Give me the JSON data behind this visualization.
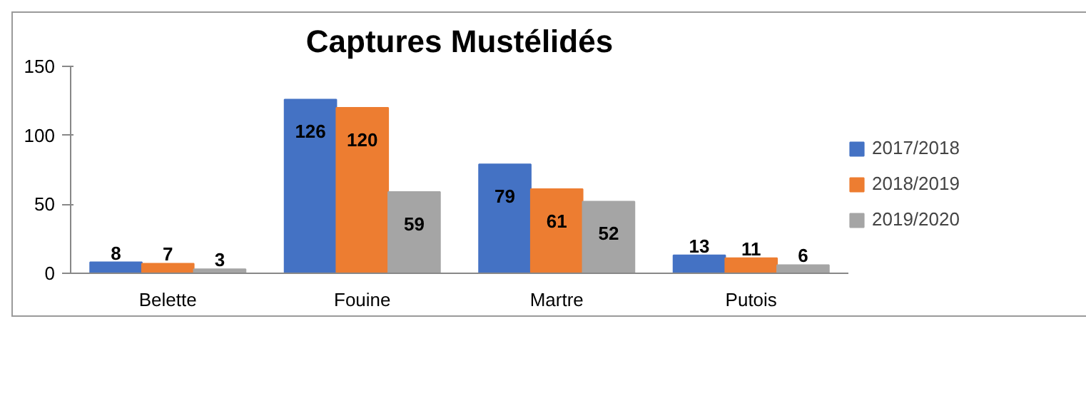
{
  "chart_data": {
    "type": "bar",
    "title": "Captures Mustélidés",
    "categories": [
      "Belette",
      "Fouine",
      "Martre",
      "Putois"
    ],
    "series": [
      {
        "name": "2017/2018",
        "color": "#4472c4",
        "values": [
          8,
          126,
          79,
          13
        ]
      },
      {
        "name": "2018/2019",
        "color": "#ed7d31",
        "values": [
          7,
          120,
          61,
          11
        ]
      },
      {
        "name": "2019/2020",
        "color": "#a5a5a5",
        "values": [
          3,
          59,
          52,
          6
        ]
      }
    ],
    "ylim": [
      0,
      150
    ],
    "yticks": [
      0,
      50,
      100,
      150
    ],
    "grid": false,
    "legend": "right",
    "data_labels": true
  }
}
